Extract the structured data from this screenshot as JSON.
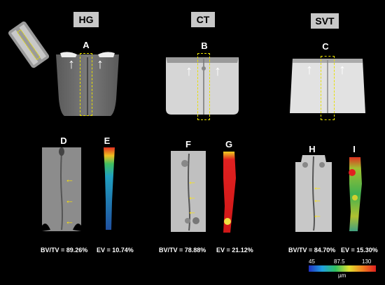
{
  "groups": [
    {
      "label": "HG"
    },
    {
      "label": "CT"
    },
    {
      "label": "SVT"
    }
  ],
  "panels": {
    "A": "A",
    "B": "B",
    "C": "C",
    "D": "D",
    "E": "E",
    "F": "F",
    "G": "G",
    "H": "H",
    "I": "I"
  },
  "metrics": [
    {
      "bvtv": "BV/TV = 89.26%",
      "ev": "EV = 10.74%"
    },
    {
      "bvtv": "BV/TV = 78.88%",
      "ev": "EV = 21.12%"
    },
    {
      "bvtv": "BV/TV = 84.70%",
      "ev": "EV = 15.30%"
    }
  ],
  "colorbar": {
    "ticks": [
      "45",
      "87.5",
      "130"
    ],
    "unit": "µm",
    "colors": [
      "#2030c0",
      "#20a0e0",
      "#30c060",
      "#e0e030",
      "#f08020",
      "#e02020"
    ]
  }
}
